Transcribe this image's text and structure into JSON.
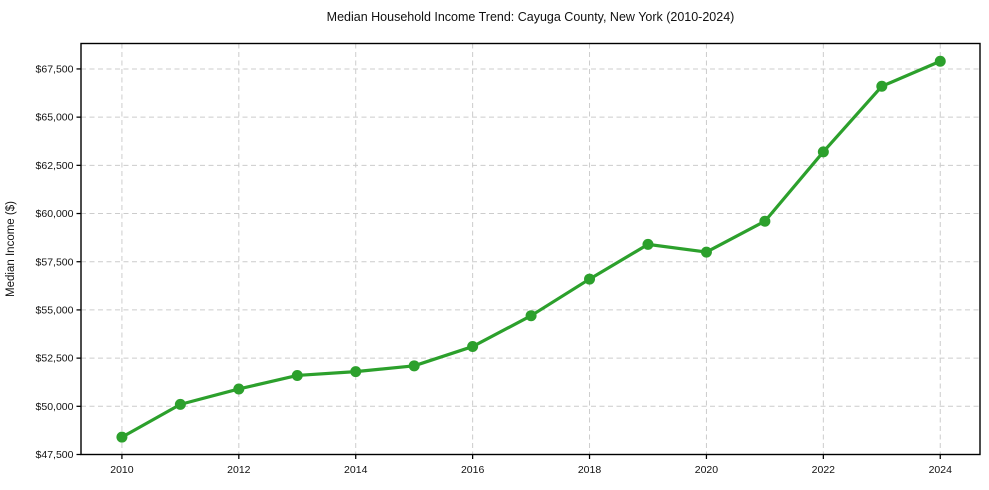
{
  "window": {
    "title": "Median Household Income Trend: Cayuga County, New York (2010-2024)"
  },
  "chart_data": {
    "type": "line",
    "title": "Median Household Income Trend: Cayuga County, New York (2010-2024)",
    "xlabel": "",
    "ylabel": "Median Income ($)",
    "series": [
      {
        "name": "Median Household Income",
        "x": [
          2010,
          2011,
          2012,
          2013,
          2014,
          2015,
          2016,
          2017,
          2018,
          2019,
          2020,
          2021,
          2022,
          2023,
          2024
        ],
        "values": [
          48400,
          50100,
          50900,
          51600,
          51800,
          52100,
          53100,
          54700,
          56600,
          58400,
          58000,
          59600,
          63200,
          66600,
          67900
        ]
      }
    ],
    "xlim": [
      2009.3,
      2024.68
    ],
    "ylim": [
      47500,
      68820
    ],
    "xticks": [
      2010,
      2012,
      2014,
      2016,
      2018,
      2020,
      2022,
      2024
    ],
    "xtick_labels": [
      "2010",
      "2012",
      "2014",
      "2016",
      "2018",
      "2020",
      "2022",
      "2024"
    ],
    "yticks": [
      47500,
      50000,
      52500,
      55000,
      57500,
      60000,
      62500,
      65000,
      67500
    ],
    "ytick_labels": [
      "$47,500",
      "$50,000",
      "$52,500",
      "$55,000",
      "$57,500",
      "$60,000",
      "$62,500",
      "$65,000",
      "$67,500"
    ],
    "grid": true,
    "grid_style": "dashed",
    "legend_position": "none",
    "colors": {
      "line": "#2ca02c",
      "marker": "#2ca02c",
      "grid": "#cccccc",
      "spine": "#000000",
      "text": "#111111",
      "plot_background": "#ffffff",
      "figure_background": "#ffffff"
    }
  }
}
